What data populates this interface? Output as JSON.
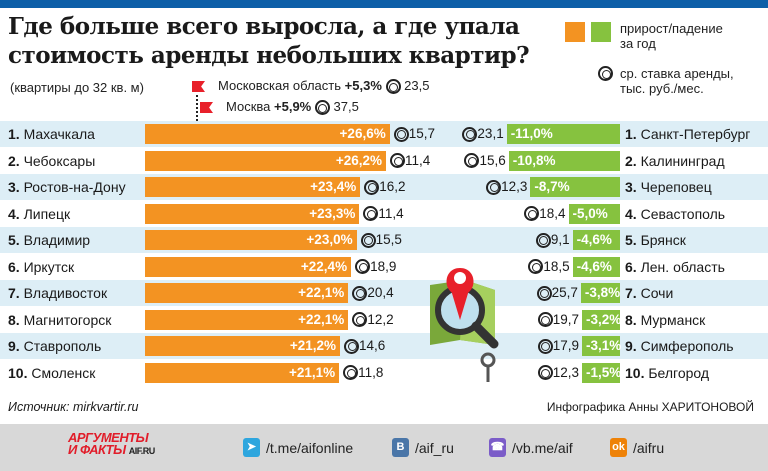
{
  "header": {
    "title_line1": "Где больше всего выросла, а где упала",
    "title_line2": "стоимость аренды небольших квартир?",
    "subtitle": "(квартиры до 32 кв. м)"
  },
  "legend": {
    "change_label": "прирост/падение за год",
    "rent_label": "ср. ставка аренды, тыс. руб./мес.",
    "colors": {
      "growth": "#f39322",
      "decline": "#86c23f",
      "flag": "#e8202a",
      "row_alt": "#ddeef6"
    }
  },
  "reference": {
    "moscow_region": {
      "name": "Московская область",
      "change": "+5,3%",
      "rent": "23,5"
    },
    "moscow": {
      "name": "Москва",
      "change": "+5,9%",
      "rent": "37,5"
    }
  },
  "chart_data": {
    "type": "bar",
    "growth": [
      {
        "rank": "1.",
        "city": "Махачкала",
        "value": 26.6,
        "label": "+26,6%",
        "rent": "15,7"
      },
      {
        "rank": "2.",
        "city": "Чебоксары",
        "value": 26.2,
        "label": "+26,2%",
        "rent": "11,4"
      },
      {
        "rank": "3.",
        "city": "Ростов-на-Дону",
        "value": 23.4,
        "label": "+23,4%",
        "rent": "16,2"
      },
      {
        "rank": "4.",
        "city": "Липецк",
        "value": 23.3,
        "label": "+23,3%",
        "rent": "11,4"
      },
      {
        "rank": "5.",
        "city": "Владимир",
        "value": 23.0,
        "label": "+23,0%",
        "rent": "15,5"
      },
      {
        "rank": "6.",
        "city": "Иркутск",
        "value": 22.4,
        "label": "+22,4%",
        "rent": "18,9"
      },
      {
        "rank": "7.",
        "city": "Владивосток",
        "value": 22.1,
        "label": "+22,1%",
        "rent": "20,4"
      },
      {
        "rank": "8.",
        "city": "Магнитогорск",
        "value": 22.1,
        "label": "+22,1%",
        "rent": "12,2"
      },
      {
        "rank": "9.",
        "city": "Ставрополь",
        "value": 21.2,
        "label": "+21,2%",
        "rent": "14,6"
      },
      {
        "rank": "10.",
        "city": "Смоленск",
        "value": 21.1,
        "label": "+21,1%",
        "rent": "11,8"
      }
    ],
    "decline": [
      {
        "rank": "1.",
        "city": "Санкт-Петербург",
        "value": -11.0,
        "label": "-11,0%",
        "rent": "23,1"
      },
      {
        "rank": "2.",
        "city": "Калининград",
        "value": -10.8,
        "label": "-10,8%",
        "rent": "15,6"
      },
      {
        "rank": "3.",
        "city": "Череповец",
        "value": -8.7,
        "label": "-8,7%",
        "rent": "12,3"
      },
      {
        "rank": "4.",
        "city": "Севастополь",
        "value": -5.0,
        "label": "-5,0%",
        "rent": "18,4"
      },
      {
        "rank": "5.",
        "city": "Брянск",
        "value": -4.6,
        "label": "-4,6%",
        "rent": "9,1"
      },
      {
        "rank": "6.",
        "city": "Лен. область",
        "value": -4.6,
        "label": "-4,6%",
        "rent": "18,5"
      },
      {
        "rank": "7.",
        "city": "Сочи",
        "value": -3.8,
        "label": "-3,8%",
        "rent": "25,7"
      },
      {
        "rank": "8.",
        "city": "Мурманск",
        "value": -3.2,
        "label": "-3,2%",
        "rent": "19,7"
      },
      {
        "rank": "9.",
        "city": "Симферополь",
        "value": -3.1,
        "label": "-3,1%",
        "rent": "17,9"
      },
      {
        "rank": "10.",
        "city": "Белгород",
        "value": -1.5,
        "label": "-1,5%",
        "rent": "12,3"
      }
    ]
  },
  "footer": {
    "source": "Источник: mirkvartir.ru",
    "author": "Инфографика Анны ХАРИТОНОВОЙ",
    "logo": "АРГУМЕНТЫ И ФАКТЫ AIF.RU",
    "social": [
      {
        "icon": "telegram-icon",
        "text": "/t.me/aifonline",
        "color": "#2ea6de"
      },
      {
        "icon": "vk-icon",
        "text": "/aif_ru",
        "color": "#4a76a8"
      },
      {
        "icon": "viber-icon",
        "text": "/vb.me/aif",
        "color": "#7b5cc8"
      },
      {
        "icon": "ok-icon",
        "text": "/aifru",
        "color": "#ee8208"
      }
    ]
  }
}
